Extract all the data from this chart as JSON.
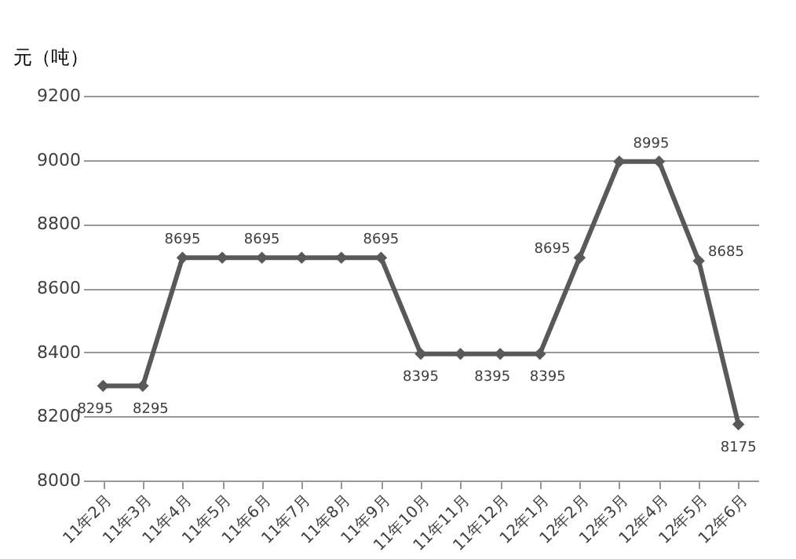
{
  "chart_data": {
    "type": "line",
    "ylabel": "元（吨）",
    "categories": [
      "11年2月",
      "11年3月",
      "11年4月",
      "11年5月",
      "11年6月",
      "11年7月",
      "11年8月",
      "11年9月",
      "11年10月",
      "11年11月",
      "11年12月",
      "12年1月",
      "12年2月",
      "12年3月",
      "12年4月",
      "12年5月",
      "12年6月"
    ],
    "series": [
      {
        "color": "#595959",
        "values": [
          8295,
          8295,
          8695,
          8695,
          8695,
          8695,
          8695,
          8695,
          8395,
          8395,
          8395,
          8395,
          8695,
          8995,
          8995,
          8685,
          8175
        ],
        "value_labels": [
          "8295",
          "8295",
          "8695",
          null,
          "8695",
          null,
          null,
          "8695",
          "8395",
          null,
          "8395",
          "8395",
          "8695",
          null,
          "8995",
          "8685",
          "8175"
        ]
      }
    ],
    "ylim": [
      8000,
      9200
    ],
    "yticks": [
      8000,
      8200,
      8400,
      8600,
      8800,
      9000,
      9200
    ],
    "grid": "y",
    "marker": "diamond",
    "line_style": "solid"
  }
}
